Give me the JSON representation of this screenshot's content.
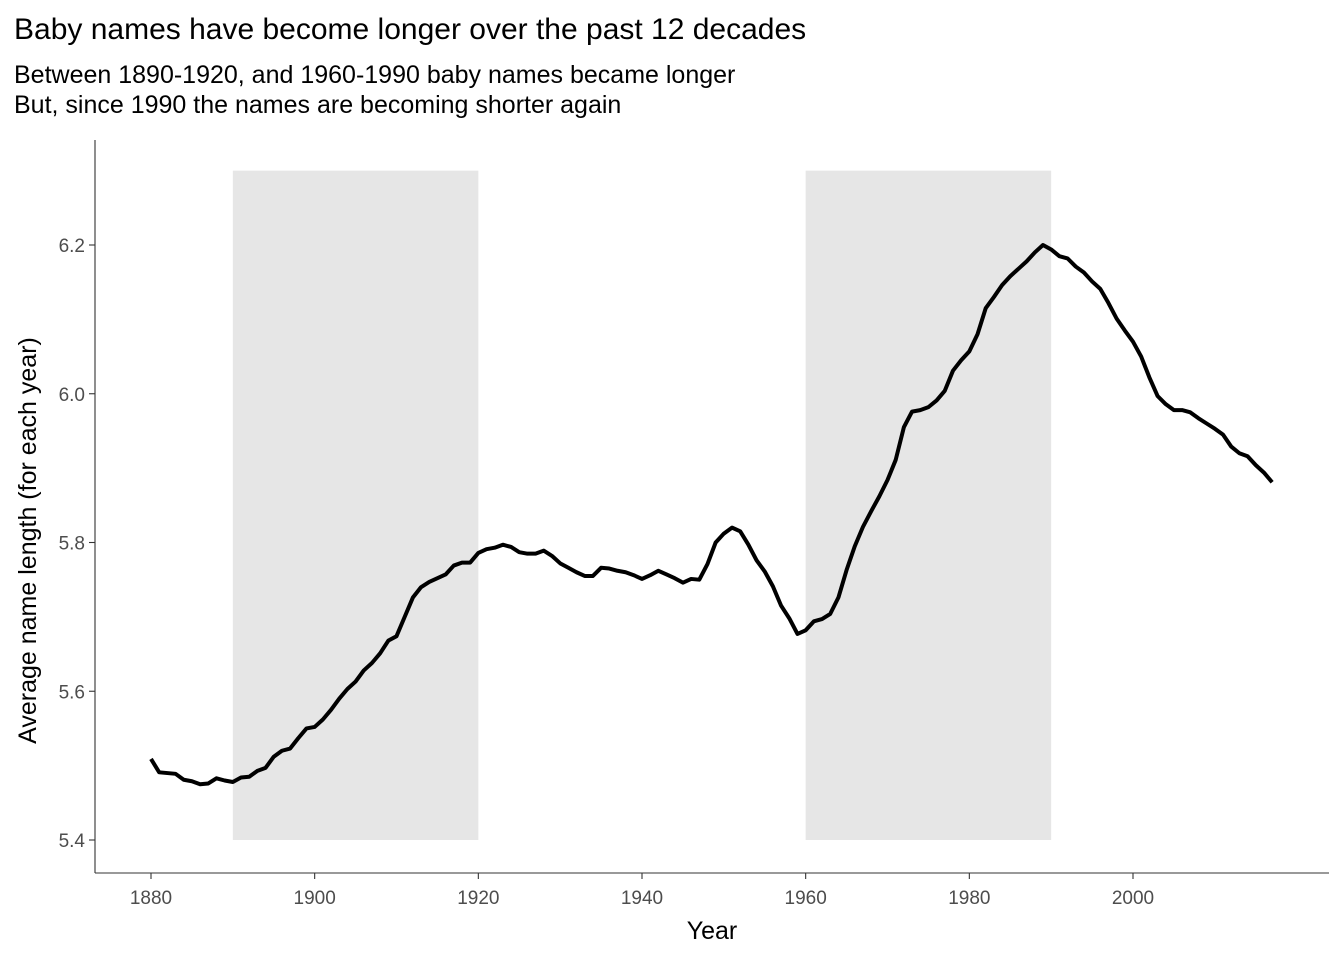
{
  "chart_data": {
    "type": "line",
    "title": "Baby names have become longer over the past 12 decades",
    "subtitle": [
      "Between 1890-1920, and 1960-1990 baby names became longer",
      "But, since 1990 the names are becoming shorter again"
    ],
    "xlabel": "Year",
    "ylabel": "Average name length (for each year)",
    "xlim": [
      1880,
      2017
    ],
    "ylim": [
      5.4,
      6.3
    ],
    "x_ticks": [
      1880,
      1900,
      1920,
      1940,
      1960,
      1980,
      2000
    ],
    "y_ticks": [
      "5.4",
      "5.6",
      "5.8",
      "6.0",
      "6.2"
    ],
    "grid": false,
    "legend": "none",
    "line_color": "#000000",
    "shade_color": "#e6e6e6",
    "shaded_periods": [
      {
        "xmin": 1890,
        "xmax": 1920,
        "ymin": 5.4,
        "ymax": 6.3
      },
      {
        "xmin": 1960,
        "xmax": 1990,
        "ymin": 5.4,
        "ymax": 6.3
      }
    ],
    "series": [
      {
        "x": [
          1880,
          1881,
          1882,
          1883,
          1884,
          1885,
          1886,
          1887,
          1888,
          1889,
          1890,
          1891,
          1892,
          1893,
          1894,
          1895,
          1896,
          1897,
          1898,
          1899,
          1900,
          1901,
          1902,
          1903,
          1904,
          1905,
          1906,
          1907,
          1908,
          1909,
          1910,
          1911,
          1912,
          1913,
          1914,
          1915,
          1916,
          1917,
          1918,
          1919,
          1920,
          1921,
          1922,
          1923,
          1924,
          1925,
          1926,
          1927,
          1928,
          1929,
          1930,
          1931,
          1932,
          1933,
          1934,
          1935,
          1936,
          1937,
          1938,
          1939,
          1940,
          1941,
          1942,
          1943,
          1944,
          1945,
          1946,
          1947,
          1948,
          1949,
          1950,
          1951,
          1952,
          1953,
          1954,
          1955,
          1956,
          1957,
          1958,
          1959,
          1960,
          1961,
          1962,
          1963,
          1964,
          1965,
          1966,
          1967,
          1968,
          1969,
          1970,
          1971,
          1972,
          1973,
          1974,
          1975,
          1976,
          1977,
          1978,
          1979,
          1980,
          1981,
          1982,
          1983,
          1984,
          1985,
          1986,
          1987,
          1988,
          1989,
          1990,
          1991,
          1992,
          1993,
          1994,
          1995,
          1996,
          1997,
          1998,
          1999,
          2000,
          2001,
          2002,
          2003,
          2004,
          2005,
          2006,
          2007,
          2008,
          2009,
          2010,
          2011,
          2012,
          2013,
          2014,
          2015,
          2016,
          2017
        ],
        "y": [
          5.509,
          5.491,
          5.49,
          5.489,
          5.481,
          5.479,
          5.475,
          5.476,
          5.483,
          5.48,
          5.478,
          5.484,
          5.485,
          5.493,
          5.497,
          5.512,
          5.52,
          5.523,
          5.537,
          5.55,
          5.552,
          5.562,
          5.575,
          5.59,
          5.603,
          5.613,
          5.628,
          5.638,
          5.651,
          5.668,
          5.674,
          5.7,
          5.726,
          5.74,
          5.747,
          5.752,
          5.757,
          5.769,
          5.773,
          5.773,
          5.786,
          5.791,
          5.793,
          5.797,
          5.794,
          5.787,
          5.785,
          5.785,
          5.789,
          5.782,
          5.772,
          5.766,
          5.76,
          5.755,
          5.755,
          5.766,
          5.765,
          5.762,
          5.76,
          5.756,
          5.751,
          5.756,
          5.762,
          5.757,
          5.752,
          5.746,
          5.751,
          5.75,
          5.771,
          5.8,
          5.812,
          5.82,
          5.815,
          5.797,
          5.776,
          5.761,
          5.741,
          5.715,
          5.698,
          5.677,
          5.682,
          5.694,
          5.697,
          5.704,
          5.726,
          5.763,
          5.795,
          5.821,
          5.842,
          5.862,
          5.884,
          5.911,
          5.955,
          5.976,
          5.978,
          5.982,
          5.991,
          6.004,
          6.031,
          6.045,
          6.057,
          6.08,
          6.115,
          6.13,
          6.146,
          6.158,
          6.168,
          6.178,
          6.19,
          6.2,
          6.194,
          6.185,
          6.182,
          6.171,
          6.163,
          6.151,
          6.141,
          6.122,
          6.101,
          6.085,
          6.07,
          6.05,
          6.022,
          5.997,
          5.986,
          5.978,
          5.978,
          5.975,
          5.967,
          5.96,
          5.953,
          5.945,
          5.929,
          5.92,
          5.916,
          5.904,
          5.894,
          5.881
        ]
      }
    ]
  }
}
